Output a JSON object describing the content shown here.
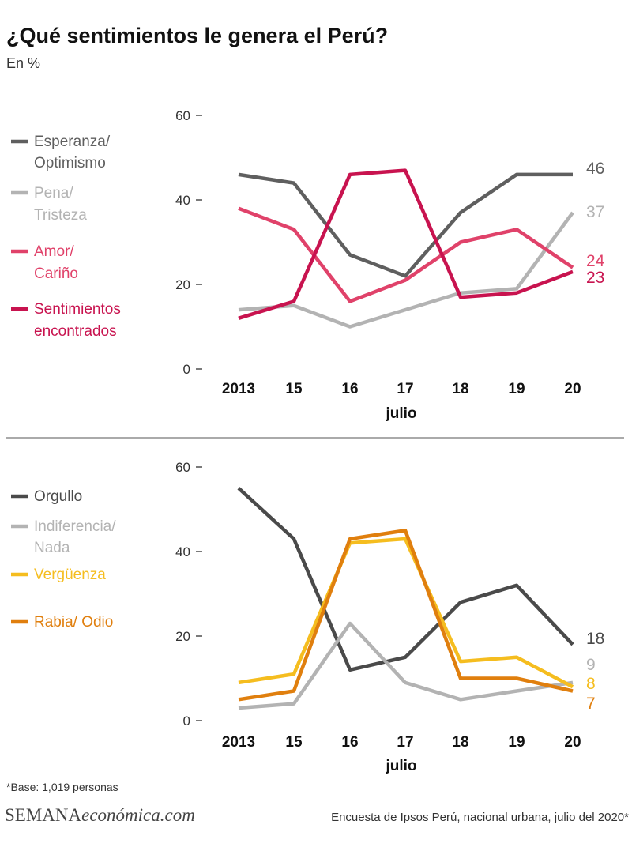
{
  "title": "¿Qué sentimientos le genera el Perú?",
  "subtitle": "En %",
  "colors": {
    "dark_gray": "#5f5f5f",
    "light_gray": "#b3b3b3",
    "pink": "#e0426a",
    "crimson": "#c8134f",
    "charcoal": "#4a4a4a",
    "yellow": "#f5bd1f",
    "orange": "#e07f0e"
  },
  "chart_data": [
    {
      "type": "line",
      "categories": [
        "2013",
        "15",
        "16",
        "17",
        "18",
        "19",
        "20"
      ],
      "xlabel": "julio",
      "ylabel": "",
      "ylim": [
        0,
        60
      ],
      "yticks": [
        "0",
        "20",
        "40",
        "60"
      ],
      "grid": false,
      "legend_position": "left",
      "series": [
        {
          "name": [
            "Esperanza/",
            "Optimismo"
          ],
          "color": "#5f5f5f",
          "values": [
            46,
            44,
            27,
            22,
            37,
            46,
            46
          ],
          "end_label": "46"
        },
        {
          "name": [
            "Pena/",
            "Tristeza"
          ],
          "color": "#b3b3b3",
          "values": [
            14,
            15,
            10,
            14,
            18,
            19,
            37
          ],
          "end_label": "37"
        },
        {
          "name": [
            "Amor/",
            "Cariño"
          ],
          "color": "#e0426a",
          "values": [
            38,
            33,
            16,
            21,
            30,
            33,
            24
          ],
          "end_label": "24"
        },
        {
          "name": [
            "Sentimientos",
            "encontrados"
          ],
          "color": "#c8134f",
          "values": [
            12,
            16,
            46,
            47,
            17,
            18,
            23
          ],
          "end_label": "23"
        }
      ]
    },
    {
      "type": "line",
      "categories": [
        "2013",
        "15",
        "16",
        "17",
        "18",
        "19",
        "20"
      ],
      "xlabel": "julio",
      "ylabel": "",
      "ylim": [
        0,
        60
      ],
      "yticks": [
        "0",
        "20",
        "40",
        "60"
      ],
      "grid": false,
      "legend_position": "left",
      "series": [
        {
          "name": [
            "Orgullo"
          ],
          "color": "#4a4a4a",
          "values": [
            55,
            43,
            12,
            15,
            28,
            32,
            18
          ],
          "end_label": "18"
        },
        {
          "name": [
            "Indiferencia/",
            "Nada"
          ],
          "color": "#b3b3b3",
          "values": [
            3,
            4,
            23,
            9,
            5,
            7,
            9
          ],
          "end_label": "9"
        },
        {
          "name": [
            "Vergüenza"
          ],
          "color": "#f5bd1f",
          "values": [
            9,
            11,
            42,
            43,
            14,
            15,
            8
          ],
          "end_label": "8"
        },
        {
          "name": [
            "Rabia/ Odio"
          ],
          "color": "#e07f0e",
          "values": [
            5,
            7,
            43,
            45,
            10,
            10,
            7
          ],
          "end_label": "7"
        }
      ]
    }
  ],
  "footer": {
    "base_note": "*Base: 1,019 personas",
    "brand_part1": "SEMANA",
    "brand_part2": "económica.com",
    "source": "Encuesta de Ipsos Perú, nacional urbana, julio del 2020*"
  }
}
